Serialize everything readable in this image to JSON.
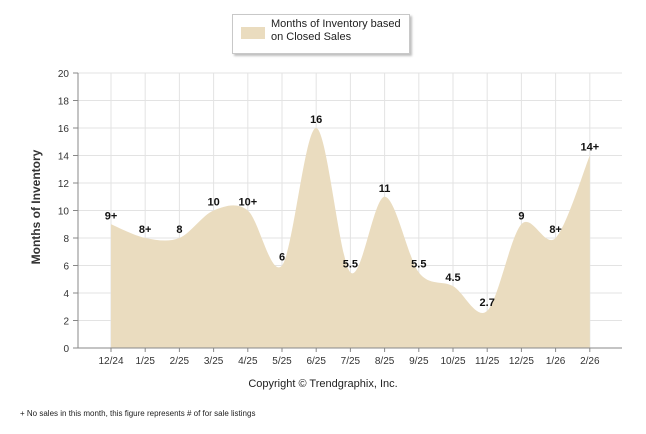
{
  "legend": {
    "label": "Months of Inventory based on Closed Sales"
  },
  "footer": {
    "copyright": "Copyright © Trendgraphix, Inc.",
    "footnote": "+  No sales in this month, this figure represents # of for sale listings"
  },
  "colors": {
    "fill": "#eadcbf",
    "grid": "#e3e3e3",
    "axis": "#888888"
  },
  "chart_data": {
    "type": "area",
    "title": "",
    "xlabel": "",
    "ylabel": "Months of Inventory",
    "ylim": [
      0,
      20
    ],
    "yticks": [
      0,
      2,
      4,
      6,
      8,
      10,
      12,
      14,
      16,
      18,
      20
    ],
    "categories": [
      "12/24",
      "1/25",
      "2/25",
      "3/25",
      "4/25",
      "5/25",
      "6/25",
      "7/25",
      "8/25",
      "9/25",
      "10/25",
      "11/25",
      "12/25",
      "1/26",
      "2/26"
    ],
    "series": [
      {
        "name": "Months of Inventory based on Closed Sales",
        "values": [
          9,
          8,
          8,
          10,
          10,
          6,
          16,
          5.5,
          11,
          5.5,
          4.5,
          2.7,
          9,
          8,
          14
        ],
        "labels": [
          "9+",
          "8+",
          "8",
          "10",
          "10+",
          "6",
          "16",
          "5.5",
          "11",
          "5.5",
          "4.5",
          "2.7",
          "9",
          "8+",
          "14+"
        ]
      }
    ]
  }
}
